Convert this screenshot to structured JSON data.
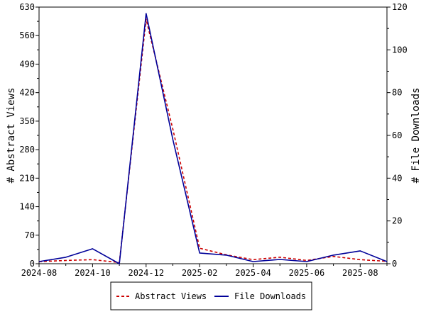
{
  "chart_data": {
    "type": "line",
    "x": [
      "2024-08",
      "2024-09",
      "2024-10",
      "2024-11",
      "2024-12",
      "2025-01",
      "2025-02",
      "2025-03",
      "2025-04",
      "2025-05",
      "2025-06",
      "2025-07",
      "2025-08",
      "2025-09"
    ],
    "x_tick_labels": [
      "2024-08",
      "2024-10",
      "2024-12",
      "2025-02",
      "2025-04",
      "2025-06",
      "2025-08"
    ],
    "left_axis": {
      "label": "# Abstract Views",
      "ylim": [
        0,
        630
      ],
      "ticks": [
        0,
        70,
        140,
        210,
        280,
        350,
        420,
        490,
        560,
        630
      ]
    },
    "right_axis": {
      "label": "# File Downloads",
      "ylim": [
        0,
        120
      ],
      "ticks": [
        0,
        20,
        40,
        60,
        80,
        100,
        120
      ]
    },
    "series": [
      {
        "name": "Abstract Views",
        "axis": "left",
        "color": "#cc0000",
        "dash": true,
        "values": [
          5,
          8,
          10,
          3,
          600,
          330,
          38,
          22,
          10,
          16,
          8,
          18,
          10,
          6
        ]
      },
      {
        "name": "File Downloads",
        "axis": "right",
        "color": "#000099",
        "dash": false,
        "values": [
          1,
          3,
          7,
          0,
          117,
          58,
          5,
          4,
          1,
          2,
          1,
          4,
          6,
          1
        ]
      }
    ],
    "legend_position": "bottom",
    "grid": false
  }
}
